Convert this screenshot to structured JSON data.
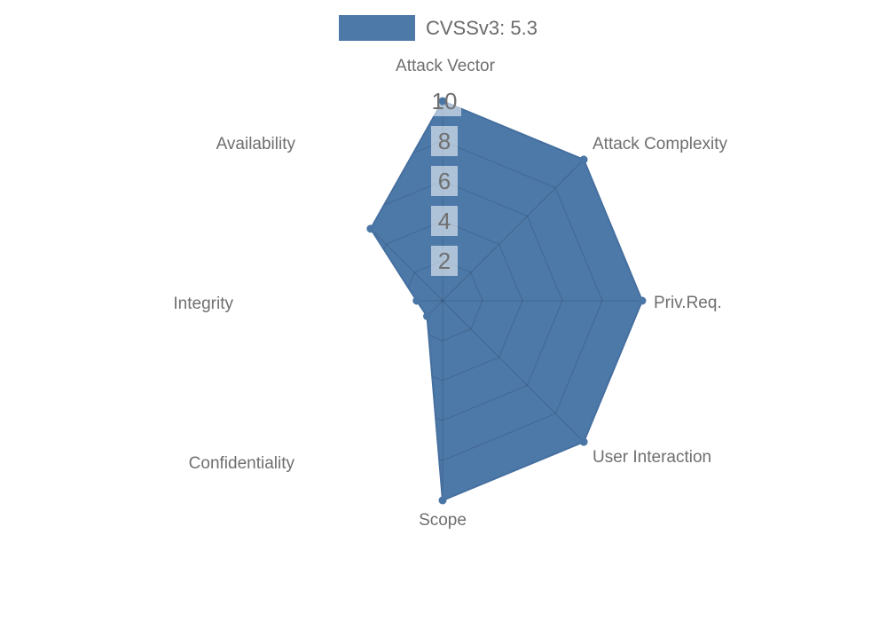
{
  "legend": {
    "label": "CVSSv3: 5.3",
    "swatch_color": "#4d79a9"
  },
  "chart_data": {
    "type": "radar",
    "title": "CVSSv3: 5.3",
    "categories": [
      "Attack Vector",
      "Attack Complexity",
      "Priv.Req.",
      "User Interaction",
      "Scope",
      "Confidentiality",
      "Integrity",
      "Availability"
    ],
    "series": [
      {
        "name": "CVSSv3: 5.3",
        "values": [
          10,
          10,
          10,
          10,
          10,
          1.1,
          1.3,
          5.1
        ]
      }
    ],
    "ticks": [
      2,
      4,
      6,
      8,
      10
    ],
    "rlim": [
      0,
      10
    ],
    "grid": "polygon-web",
    "legend_position": "top",
    "colors": {
      "fill": "#4d79a9",
      "border": "#456f9f",
      "dot": "#4a76a6",
      "grid": "rgba(0,0,0,0.13)",
      "tick_backdrop": "rgba(255,255,255,0.55)",
      "tick_text": "#707070",
      "axis_label": "#6f6f6f",
      "legend_text": "#6a6a6a",
      "background": "#ffffff"
    }
  }
}
